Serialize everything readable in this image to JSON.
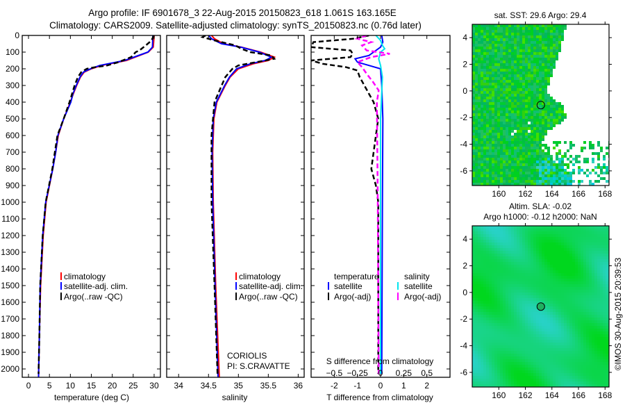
{
  "header": {
    "title_line1": "Argo profile: IF 6901678_3 22-Aug-2015 20150823_618 1.061S 163.165E",
    "title_line2": "Climatology: CARS2009. Satellite-adjusted climatology: synTS_20150823.nc (0.76d later)"
  },
  "footer": {
    "stamp": "©IMOS 30-Aug-2015 20:39:53",
    "institution": "CORIOLIS",
    "pi": "PI: S.CRAVATTE"
  },
  "colors": {
    "climatology": "#ff0000",
    "satellite": "#0000ff",
    "argo": "#000000",
    "sal_satellite": "#00e5ee",
    "sal_argo": "#ff00ff"
  },
  "chart_data": [
    {
      "type": "line",
      "name": "temperature-profile",
      "xlabel": "temperature (deg C)",
      "ylabel": "depth",
      "xlim": [
        -1.5,
        31.5
      ],
      "ylim": [
        0,
        2050
      ],
      "xticks": [
        0,
        5,
        10,
        15,
        20,
        25,
        30
      ],
      "yticks": [
        0,
        100,
        200,
        300,
        400,
        500,
        600,
        700,
        800,
        900,
        1000,
        1100,
        1200,
        1300,
        1400,
        1500,
        1600,
        1700,
        1800,
        1900,
        2000
      ],
      "legend": [
        "climatology",
        "satellite-adj. clim.",
        "Argo(..raw -QC)"
      ],
      "series": [
        {
          "name": "climatology",
          "color": "#ff0000",
          "style": "solid",
          "depth": [
            0,
            70,
            100,
            150,
            180,
            200,
            220,
            250,
            300,
            350,
            400,
            500,
            600,
            700,
            800,
            1000,
            1200,
            1500,
            1800,
            2050
          ],
          "values": [
            30.0,
            29.8,
            28.6,
            23.4,
            17.5,
            15.0,
            13.3,
            12.4,
            11.5,
            10.7,
            10.0,
            8.4,
            7.1,
            6.5,
            5.8,
            4.2,
            3.5,
            2.9,
            2.6,
            2.4
          ]
        },
        {
          "name": "satellite-adj. clim.",
          "color": "#0000ff",
          "style": "solid",
          "depth": [
            0,
            70,
            100,
            150,
            180,
            200,
            220,
            250,
            300,
            350,
            400,
            500,
            600,
            700,
            800,
            1000,
            1200,
            1500,
            1800,
            2050
          ],
          "values": [
            29.7,
            29.6,
            28.5,
            23.0,
            17.0,
            14.8,
            13.1,
            12.3,
            11.4,
            10.6,
            10.1,
            8.4,
            7.0,
            6.5,
            5.8,
            4.1,
            3.4,
            2.8,
            2.6,
            2.4
          ]
        },
        {
          "name": "Argo(..raw -QC)",
          "color": "#000000",
          "style": "dash",
          "depth": [
            0,
            30,
            60,
            90,
            100,
            130,
            160,
            180,
            190,
            200,
            220,
            250,
            300,
            350,
            400,
            500,
            600,
            700,
            800,
            1000,
            1200,
            1500,
            1800,
            2030
          ],
          "values": [
            29.9,
            29.4,
            28.0,
            26.5,
            25.6,
            24.5,
            21.5,
            18.8,
            16.0,
            13.9,
            12.6,
            11.8,
            11.0,
            10.4,
            9.8,
            8.4,
            6.9,
            6.3,
            5.7,
            4.1,
            3.4,
            2.8,
            2.6,
            2.4
          ]
        }
      ]
    },
    {
      "type": "line",
      "name": "salinity-profile",
      "xlabel": "salinity",
      "xlim": [
        33.8,
        36.1
      ],
      "ylim": [
        0,
        2050
      ],
      "xticks": [
        34,
        34.5,
        35,
        35.5,
        36
      ],
      "legend": [
        "climatology",
        "satellite-adj. clim.",
        "Argo(..raw -QC)"
      ],
      "series": [
        {
          "name": "climatology",
          "color": "#ff0000",
          "style": "solid",
          "depth": [
            0,
            20,
            50,
            70,
            100,
            130,
            150,
            170,
            200,
            250,
            300,
            400,
            500,
            700,
            1000,
            1500,
            2050
          ],
          "values": [
            34.55,
            34.6,
            34.75,
            35.05,
            35.37,
            35.6,
            35.5,
            35.25,
            35.0,
            34.86,
            34.78,
            34.64,
            34.59,
            34.57,
            34.58,
            34.62,
            34.68
          ]
        },
        {
          "name": "satellite-adj. clim.",
          "color": "#0000ff",
          "style": "solid",
          "depth": [
            0,
            20,
            50,
            70,
            100,
            130,
            150,
            170,
            200,
            250,
            300,
            400,
            500,
            700,
            1000,
            1500,
            2050
          ],
          "values": [
            34.5,
            34.55,
            34.72,
            35.04,
            35.35,
            35.55,
            35.45,
            35.2,
            34.97,
            34.85,
            34.77,
            34.63,
            34.58,
            34.56,
            34.57,
            34.61,
            34.66
          ]
        },
        {
          "name": "Argo(..raw -QC)",
          "color": "#000000",
          "style": "dash",
          "depth": [
            0,
            10,
            30,
            60,
            80,
            100,
            120,
            140,
            160,
            180,
            200,
            250,
            300,
            400,
            600,
            1000,
            1500,
            2030
          ],
          "values": [
            34.45,
            34.4,
            34.6,
            34.95,
            35.05,
            35.2,
            35.55,
            35.6,
            35.3,
            35.0,
            34.9,
            34.78,
            34.72,
            34.6,
            34.55,
            34.55,
            34.6,
            34.65
          ]
        }
      ]
    },
    {
      "type": "line",
      "name": "difference-profile",
      "xlabel": "T difference from climatology",
      "x2label": "S difference from climatology",
      "xlim": [
        -3,
        3
      ],
      "x2lim": [
        -0.75,
        0.75
      ],
      "xticks": [
        -2,
        -1,
        0,
        1,
        2
      ],
      "x2ticks": [
        -0.5,
        -0.25,
        0,
        0.25,
        0.5
      ],
      "legend_headers": [
        "temperature",
        "salinity"
      ],
      "legend": [
        "satellite",
        "Argo(-adj)",
        "satellite",
        "Argo(-adj)"
      ],
      "series": [
        {
          "name": "T satellite",
          "axis": "T",
          "color": "#0000ff",
          "style": "solid",
          "depth": [
            0,
            40,
            70,
            100,
            120,
            140,
            160,
            180,
            200,
            300,
            500,
            1000,
            2030
          ],
          "values": [
            0.05,
            0.1,
            0.0,
            -0.3,
            -0.5,
            -1.1,
            -1.0,
            -0.5,
            0.0,
            0.05,
            0.1,
            0.08,
            0.05
          ]
        },
        {
          "name": "T Argo(-adj)",
          "axis": "T",
          "color": "#000000",
          "style": "dash",
          "depth": [
            0,
            20,
            40,
            70,
            90,
            110,
            130,
            150,
            170,
            190,
            210,
            250,
            300,
            350,
            400,
            500,
            600,
            700,
            800,
            900,
            1000,
            1500,
            2030
          ],
          "values": [
            -0.5,
            -1.2,
            -2.9,
            -3.0,
            -1.3,
            -1.2,
            -1.3,
            -3.0,
            -2.5,
            -1.5,
            -1.0,
            -0.9,
            -0.7,
            -0.5,
            -0.3,
            -0.1,
            -0.2,
            -0.3,
            -0.4,
            -0.2,
            -0.1,
            -0.1,
            -0.1
          ]
        },
        {
          "name": "S satellite",
          "axis": "S",
          "color": "#00e5ee",
          "style": "solid",
          "depth": [
            0,
            30,
            60,
            80,
            100,
            140,
            180,
            250,
            500,
            1000,
            2030
          ],
          "values": [
            -0.05,
            0.0,
            0.02,
            0.045,
            0.0,
            -0.02,
            0.0,
            0.02,
            0.0,
            0.0,
            0.0
          ]
        },
        {
          "name": "S Argo(-adj)",
          "axis": "S",
          "color": "#ff00ff",
          "style": "dash",
          "depth": [
            0,
            20,
            40,
            60,
            90,
            110,
            130,
            160,
            190,
            230,
            280,
            330,
            400,
            1000,
            2030
          ],
          "values": [
            -0.15,
            -0.25,
            -0.1,
            -0.2,
            -0.15,
            0.1,
            -0.1,
            -0.25,
            -0.2,
            -0.15,
            -0.08,
            -0.02,
            -0.04,
            -0.03,
            -0.02
          ]
        }
      ]
    },
    {
      "type": "heatmap",
      "name": "sst-map",
      "title": "sat. SST: 29.6 Argo: 29.4",
      "xlim": [
        158.0,
        168.3
      ],
      "ylim": [
        -7.1,
        5.0
      ],
      "xticks": [
        160,
        162,
        164,
        166,
        168
      ],
      "yticks": [
        -6,
        -4,
        -2,
        0,
        2,
        4
      ],
      "argo_lon": 163.165,
      "argo_lat": -1.061
    },
    {
      "type": "heatmap",
      "name": "sla-map",
      "title_line1": "Altim. SLA: -0.02",
      "title_line2": "Argo h1000: -0.12 h2000: NaN",
      "xlim": [
        158.0,
        168.3
      ],
      "ylim": [
        -7.1,
        5.0
      ],
      "xticks": [
        160,
        162,
        164,
        166,
        168
      ],
      "yticks": [
        -6,
        -4,
        -2,
        0,
        2,
        4
      ],
      "argo_lon": 163.165,
      "argo_lat": -1.061
    }
  ]
}
